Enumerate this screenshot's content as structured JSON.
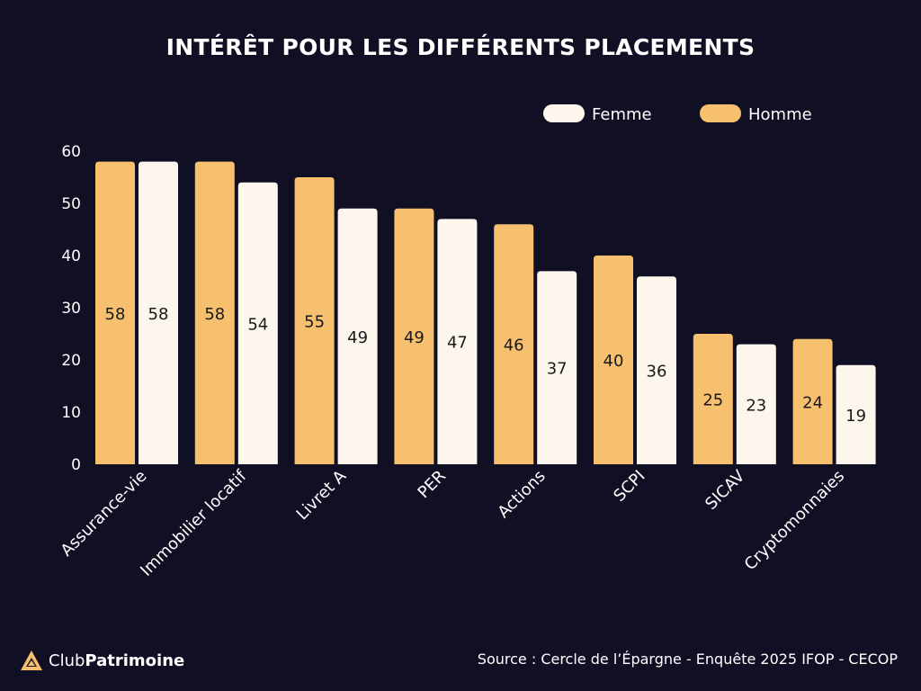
{
  "colors": {
    "background": "#100f24",
    "homme": "#f6c06f",
    "femme": "#fcf6ec",
    "text": "#ffffff",
    "bar_label": "#1a1a1a",
    "logo": "#f6c06f"
  },
  "chart_data": {
    "type": "bar",
    "title": "INTÉRÊT POUR LES DIFFÉRENTS PLACEMENTS",
    "categories": [
      "Assurance-vie",
      "Immobilier locatif",
      "Livret A",
      "PER",
      "Actions",
      "SCPI",
      "SICAV",
      "Cryptomonnaies"
    ],
    "series": [
      {
        "name": "Homme",
        "values": [
          58,
          58,
          55,
          49,
          46,
          40,
          25,
          24
        ]
      },
      {
        "name": "Femme",
        "values": [
          58,
          54,
          49,
          47,
          37,
          36,
          23,
          19
        ]
      }
    ],
    "legend_order": [
      "Femme",
      "Homme"
    ],
    "legend_position": "top-right",
    "ylim": [
      0,
      60
    ],
    "yticks": [
      0,
      10,
      20,
      30,
      40,
      50,
      60
    ],
    "xlabel": "",
    "ylabel": "",
    "grid": false
  },
  "footer": {
    "logo_prefix": "Club",
    "logo_suffix": "Patrimoine",
    "logo_icon": "triangle-logo-icon",
    "source": "Source : Cercle de l’Épargne - Enquête 2025 IFOP - CECOP"
  }
}
